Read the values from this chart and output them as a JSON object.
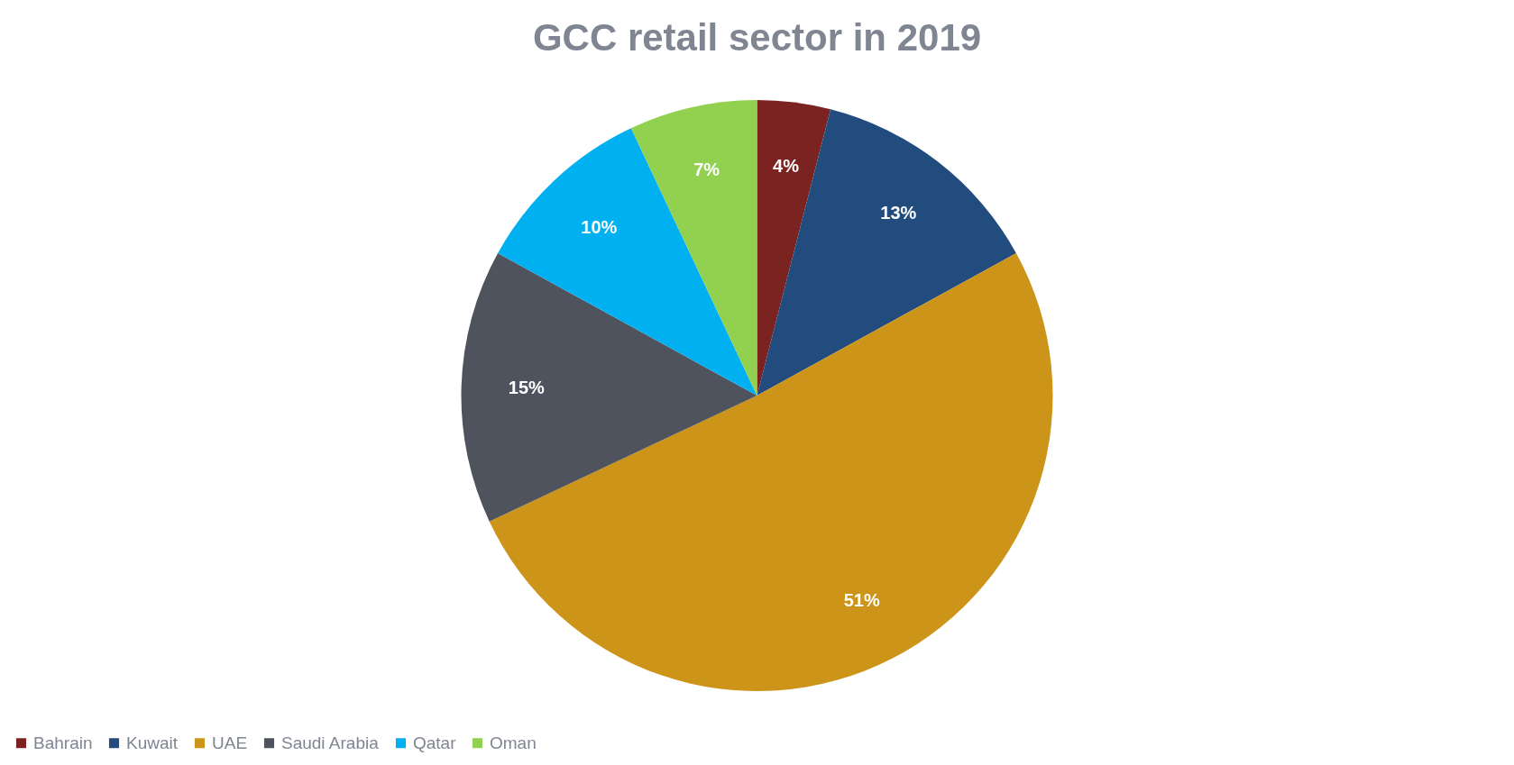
{
  "chart_data": {
    "type": "pie",
    "title": "GCC retail sector in 2019",
    "categories": [
      "Bahrain",
      "Kuwait",
      "UAE",
      "Saudi Arabia",
      "Qatar",
      "Oman"
    ],
    "values": [
      4,
      13,
      51,
      15,
      10,
      7
    ],
    "colors": [
      "#7b2320",
      "#224b7e",
      "#cc9418",
      "#4f535e",
      "#00b0f0",
      "#92d050"
    ],
    "value_labels": [
      "4%",
      "13%",
      "51%",
      "15%",
      "10%",
      "7%"
    ],
    "legend": "bottom"
  }
}
